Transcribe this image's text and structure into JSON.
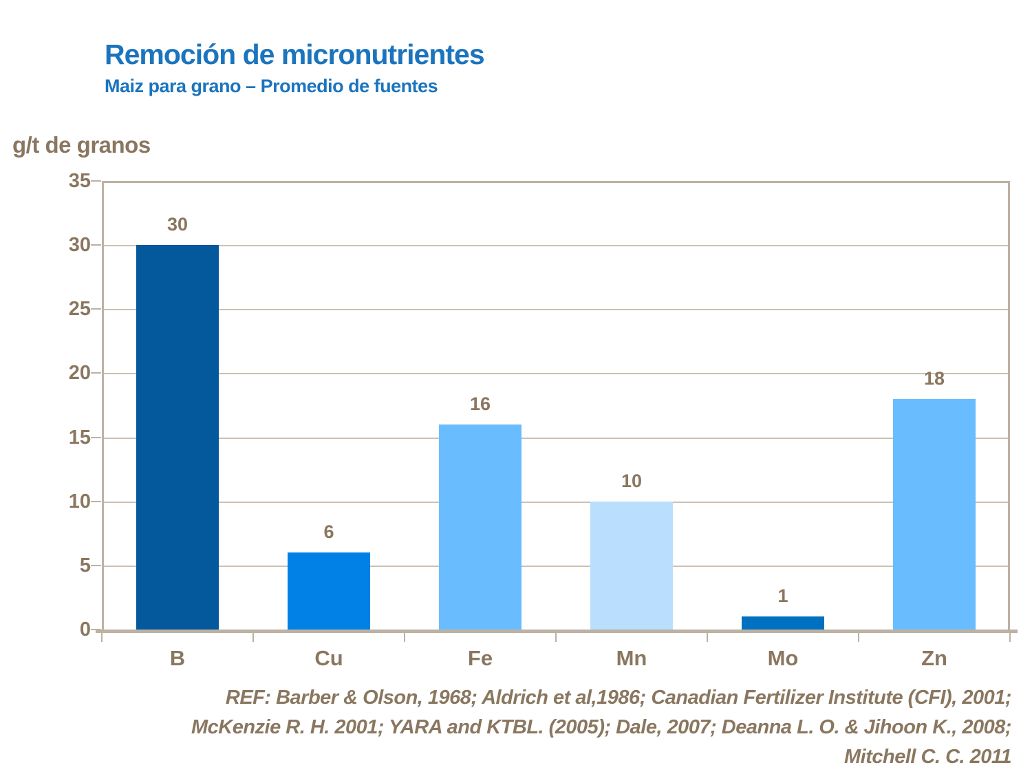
{
  "header": {
    "title": "Remoción de micronutrientes",
    "subtitle": "Maiz para grano – Promedio de fuentes"
  },
  "axis_label": "g/t de granos",
  "chart_data": {
    "type": "bar",
    "title": "Remoción de micronutrientes",
    "subtitle": "Maiz para grano – Promedio de fuentes",
    "categories": [
      "B",
      "Cu",
      "Fe",
      "Mn",
      "Mo",
      "Zn"
    ],
    "values": [
      30,
      6,
      16,
      10,
      1,
      18
    ],
    "bar_colors": [
      "#04589C",
      "#0181E6",
      "#69BDFF",
      "#BADEFE",
      "#0070C0",
      "#69BDFF"
    ],
    "xlabel": "",
    "ylabel": "g/t de granos",
    "ylim": [
      0,
      35
    ],
    "ytick_interval": 5,
    "grid": true,
    "legend": false,
    "data_labels": true
  },
  "footer": {
    "ref_lines": [
      "REF: Barber & Olson, 1968; Aldrich et al,1986; Canadian Fertilizer Institute (CFI), 2001;",
      "McKenzie R. H. 2001; YARA and KTBL. (2005); Dale, 2007; Deanna L. O. & Jihoon K.,  2008;",
      "Mitchell C. C. 2011"
    ]
  },
  "colors": {
    "title_blue": "#1B74BE",
    "text_brown": "#8A7760",
    "axis_line": "#BDB1A2",
    "gridline": "#CBC0B2",
    "background": "#FFFFFF"
  }
}
